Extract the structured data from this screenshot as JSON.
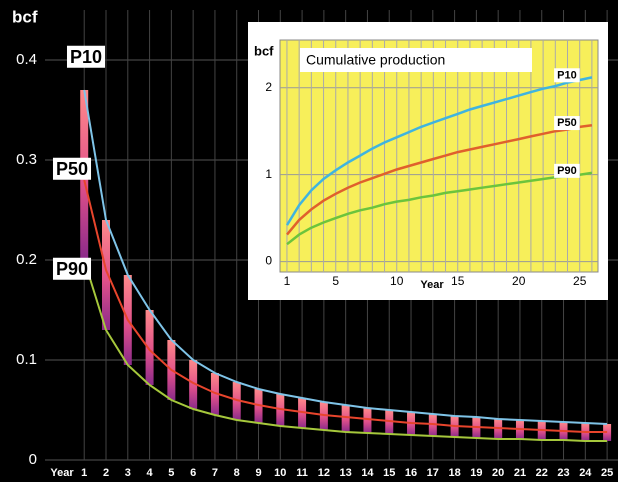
{
  "chart_data": [
    {
      "type": "line",
      "ylabel": "bcf",
      "xlabel": "Year",
      "x": [
        1,
        2,
        3,
        4,
        5,
        6,
        7,
        8,
        9,
        10,
        11,
        12,
        13,
        14,
        15,
        16,
        17,
        18,
        19,
        20,
        21,
        22,
        23,
        24,
        25
      ],
      "xlim": [
        -0.8,
        25.5
      ],
      "xticks": [
        1,
        2,
        3,
        4,
        5,
        6,
        7,
        8,
        9,
        10,
        11,
        12,
        13,
        14,
        15,
        16,
        17,
        18,
        19,
        20,
        21,
        22,
        23,
        24,
        25
      ],
      "ylim": [
        0,
        0.45
      ],
      "yticks": [
        0,
        0.1,
        0.2,
        0.3,
        0.4
      ],
      "grid": true,
      "bars_between": [
        2,
        0
      ],
      "series": [
        {
          "name": "P10",
          "color": "#7fc4e8",
          "values": [
            0.37,
            0.24,
            0.185,
            0.15,
            0.12,
            0.1,
            0.087,
            0.078,
            0.071,
            0.066,
            0.062,
            0.058,
            0.055,
            0.052,
            0.05,
            0.048,
            0.046,
            0.044,
            0.043,
            0.041,
            0.04,
            0.039,
            0.038,
            0.037,
            0.036
          ]
        },
        {
          "name": "P50",
          "color": "#e8452c",
          "values": [
            0.28,
            0.19,
            0.14,
            0.11,
            0.09,
            0.077,
            0.067,
            0.06,
            0.055,
            0.051,
            0.048,
            0.045,
            0.043,
            0.041,
            0.039,
            0.037,
            0.036,
            0.034,
            0.033,
            0.032,
            0.031,
            0.03,
            0.029,
            0.028,
            0.028
          ]
        },
        {
          "name": "P90",
          "color": "#a6c83c",
          "values": [
            0.2,
            0.13,
            0.095,
            0.075,
            0.06,
            0.051,
            0.045,
            0.04,
            0.037,
            0.034,
            0.032,
            0.03,
            0.028,
            0.027,
            0.026,
            0.025,
            0.024,
            0.023,
            0.022,
            0.021,
            0.021,
            0.02,
            0.02,
            0.019,
            0.019
          ]
        }
      ]
    },
    {
      "type": "line",
      "title": "Cumulative production",
      "ylabel": "bcf",
      "xlabel": "Year",
      "x": [
        1,
        2,
        3,
        4,
        5,
        6,
        7,
        8,
        9,
        10,
        11,
        12,
        13,
        14,
        15,
        16,
        17,
        18,
        19,
        20,
        21,
        22,
        23,
        24,
        25,
        26
      ],
      "xlim": [
        0.43,
        26.5
      ],
      "xticks": [
        1,
        5,
        10,
        15,
        20,
        25
      ],
      "ylim": [
        -0.12,
        2.55
      ],
      "yticks": [
        0,
        1,
        2
      ],
      "grid": true,
      "series": [
        {
          "name": "P10",
          "color": "#3fb4e0",
          "values": [
            0.42,
            0.65,
            0.82,
            0.95,
            1.05,
            1.14,
            1.22,
            1.3,
            1.37,
            1.43,
            1.49,
            1.55,
            1.6,
            1.65,
            1.7,
            1.75,
            1.79,
            1.83,
            1.87,
            1.91,
            1.95,
            1.99,
            2.02,
            2.06,
            2.09,
            2.12
          ]
        },
        {
          "name": "P50",
          "color": "#e0602c",
          "values": [
            0.31,
            0.48,
            0.6,
            0.7,
            0.78,
            0.85,
            0.91,
            0.96,
            1.01,
            1.06,
            1.1,
            1.14,
            1.18,
            1.22,
            1.26,
            1.29,
            1.32,
            1.35,
            1.38,
            1.41,
            1.44,
            1.47,
            1.5,
            1.52,
            1.55,
            1.57
          ]
        },
        {
          "name": "P90",
          "color": "#6cc43c",
          "values": [
            0.2,
            0.31,
            0.39,
            0.45,
            0.5,
            0.55,
            0.59,
            0.62,
            0.66,
            0.69,
            0.71,
            0.74,
            0.76,
            0.79,
            0.81,
            0.83,
            0.85,
            0.87,
            0.89,
            0.91,
            0.93,
            0.95,
            0.97,
            0.98,
            1.0,
            1.02
          ]
        }
      ]
    }
  ]
}
